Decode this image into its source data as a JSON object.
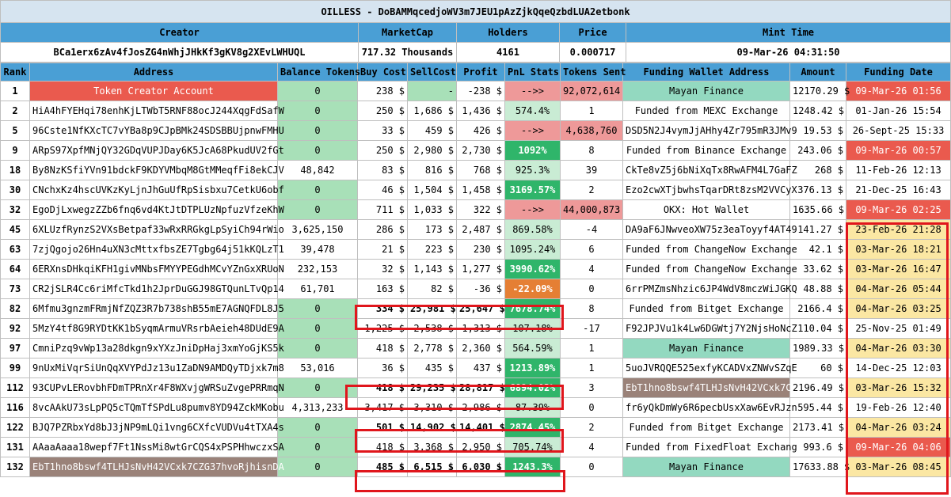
{
  "token_title": "OILLESS - DoBAMMqcedjoWV3m7JEU1pAzZjkQqeQzbdLUA2etbonk",
  "summary_headers": {
    "creator": "Creator",
    "marketcap": "MarketCap",
    "holders": "Holders",
    "price": "Price",
    "mint_time": "Mint Time"
  },
  "summary_values": {
    "creator": "BCa1erx6zAv4fJosZG4nWhjJHkKf3gKV8g2XEvLWHUQL",
    "marketcap": "717.32 Thousands",
    "holders": "4161",
    "price": "0.000717",
    "mint_time": "09-Mar-26 04:31:50"
  },
  "columns": [
    "Rank",
    "Address",
    "Balance Tokens",
    "Buy Cost",
    "SellCost",
    "Profit",
    "PnL Stats",
    "Tokens Sent",
    "Funding Wallet Address",
    "Amount",
    "Funding Date"
  ],
  "rows": [
    {
      "rank": "1",
      "address": "Token Creator Account",
      "balance": "0",
      "buy": "238 $",
      "sell": "-",
      "profit": "-238 $",
      "pnl": "-->>",
      "sent": "92,072,614",
      "funding": "Mayan Finance",
      "amount": "12170.29 $",
      "date": "09-Mar-26 01:56"
    },
    {
      "rank": "2",
      "address": "HiA4hFYEHqi78enhKjLTWbT5RNF88ocJ244XqgFdSafW",
      "balance": "0",
      "buy": "250 $",
      "sell": "1,686 $",
      "profit": "1,436 $",
      "pnl": "574.4%",
      "sent": "1",
      "funding": "Funded from MEXC Exchange",
      "amount": "1248.42 $",
      "date": "01-Jan-26 15:54"
    },
    {
      "rank": "5",
      "address": "96Cste1NfKXcTC7vYBa8p9CJpBMk24SDSBBUjpnwFMHU",
      "balance": "0",
      "buy": "33 $",
      "sell": "459 $",
      "profit": "426 $",
      "pnl": "-->>",
      "sent": "4,638,760",
      "funding": "DSD5N2J4vymJjAHhy4Zr795mR3JMv9",
      "amount": "19.53 $",
      "date": "26-Sept-25 15:33"
    },
    {
      "rank": "9",
      "address": "ARpS97XpfMNjQY32GDqVUPJDay6K5JcA68PkudUV2fGt",
      "balance": "0",
      "buy": "250 $",
      "sell": "2,980 $",
      "profit": "2,730 $",
      "pnl": "1092%",
      "sent": "8",
      "funding": "Funded from Binance Exchange",
      "amount": "243.06 $",
      "date": "09-Mar-26 00:57"
    },
    {
      "rank": "18",
      "address": "By8NzKSfiYVn91bdckF9KDYVMbqM8GtMMeqfFi8ekCJV",
      "balance": "48,842",
      "buy": "83 $",
      "sell": "816 $",
      "profit": "768 $",
      "pnl": "925.3%",
      "sent": "39",
      "funding": "CkTe8vZ5j6bNiXqTx8RwAFM4L7GaFZ",
      "amount": "268 $",
      "date": "11-Feb-26 12:13"
    },
    {
      "rank": "30",
      "address": "CNchxKz4hscUVKzKyLjnJhGuUfRpSisbxu7CetkU6obf",
      "balance": "0",
      "buy": "46 $",
      "sell": "1,504 $",
      "profit": "1,458 $",
      "pnl": "3169.57%",
      "sent": "2",
      "funding": "Ezo2cwXTjbwhsTqarDRt8zsM2VVCyX",
      "amount": "376.13 $",
      "date": "21-Dec-25 16:43"
    },
    {
      "rank": "32",
      "address": "EgoDjLxwegzZZb6fnq6vd4KtJtDTPLUzNpfuzVfzeKhW",
      "balance": "0",
      "buy": "711 $",
      "sell": "1,033 $",
      "profit": "322 $",
      "pnl": "-->>",
      "sent": "44,000,873",
      "funding": "OKX: Hot Wallet",
      "amount": "1635.66 $",
      "date": "09-Mar-26 02:25"
    },
    {
      "rank": "45",
      "address": "6XLUzfRynzS2VXsBetpaf33wRxRRGkgLpSyiCh94rWio",
      "balance": "3,625,150",
      "buy": "286 $",
      "sell": "173 $",
      "profit": "2,487 $",
      "pnl": "869.58%",
      "sent": "-4",
      "funding": "DA9aF6JNwveoXW75z3eaToyyf4AT49",
      "amount": "141.27 $",
      "date": "23-Feb-26 21:28"
    },
    {
      "rank": "63",
      "address": "7zjQgojo26Hn4uXN3cMttxfbsZE7Tgbg64j51kKQLzT1",
      "balance": "39,478",
      "buy": "21 $",
      "sell": "223 $",
      "profit": "230 $",
      "pnl": "1095.24%",
      "sent": "6",
      "funding": "Funded from ChangeNow Exchange",
      "amount": "42.1 $",
      "date": "03-Mar-26 18:21"
    },
    {
      "rank": "64",
      "address": "6ERXnsDHkqiKFH1givMNbsFMYYPEGdhMCvYZnGxXRUoN",
      "balance": "232,153",
      "buy": "32 $",
      "sell": "1,143 $",
      "profit": "1,277 $",
      "pnl": "3990.62%",
      "sent": "4",
      "funding": "Funded from ChangeNow Exchange",
      "amount": "33.62 $",
      "date": "03-Mar-26 16:47"
    },
    {
      "rank": "73",
      "address": "CR2jSLR4Cc6riMfcTkd1h2JprDuGGJ98GTQunLTvQp14",
      "balance": "61,701",
      "buy": "163 $",
      "sell": "82 $",
      "profit": "-36 $",
      "pnl": "-22.09%",
      "sent": "0",
      "funding": "6rrPMZmsNhzic6JP4WdV8mczWiJGKQ",
      "amount": "48.88 $",
      "date": "04-Mar-26 05:44"
    },
    {
      "rank": "82",
      "address": "6Mfmu3gnzmFRmjNfZQZ3R7b738shB55mE7AGNQFDL8J5",
      "balance": "0",
      "buy": "334 $",
      "sell": "25,981 $",
      "profit": "25,647 $",
      "pnl": "7678.74%",
      "sent": "8",
      "funding": "Funded from Bitget Exchange",
      "amount": "2166.4 $",
      "date": "04-Mar-26 03:25"
    },
    {
      "rank": "92",
      "address": "5MzY4tf8G9RYDtKK1bSyqmArmuVRsrbAeieh48DUdE9A",
      "balance": "0",
      "buy": "1,225 $",
      "sell": "2,538 $",
      "profit": "1,313 $",
      "pnl": "107.18%",
      "sent": "-17",
      "funding": "F92JPJVu1k4Lw6DGWtj7Y2NjsHoNcZ",
      "amount": "110.04 $",
      "date": "25-Nov-25 01:49"
    },
    {
      "rank": "97",
      "address": "CmniPzq9vWp13a28dkgn9xYXzJniDpHaj3xmYoGjKS5k",
      "balance": "0",
      "buy": "418 $",
      "sell": "2,778 $",
      "profit": "2,360 $",
      "pnl": "564.59%",
      "sent": "1",
      "funding": "Mayan Finance",
      "amount": "1989.33 $",
      "date": "04-Mar-26 03:30"
    },
    {
      "rank": "99",
      "address": "9nUxMiVqrSiUnQqXVYPdJz13u1ZaDN9AMDQyTDjxk7m8",
      "balance": "53,016",
      "buy": "36 $",
      "sell": "435 $",
      "profit": "437 $",
      "pnl": "1213.89%",
      "sent": "1",
      "funding": "5uoJVRQQE525exfyKCADVxZNWvSZqE",
      "amount": "60 $",
      "date": "14-Dec-25 12:03"
    },
    {
      "rank": "112",
      "address": "93CUPvLERovbhFDmTPRnXr4F8WXvjgWRSuZvgePRRmqN",
      "balance": "0",
      "buy": "418 $",
      "sell": "29,235 $",
      "profit": "28,817 $",
      "pnl": "6894.02%",
      "sent": "3",
      "funding": "EbT1hno8bswf4TLHJsNvH42VCxk7CZ",
      "amount": "2196.49 $",
      "date": "03-Mar-26 15:32"
    },
    {
      "rank": "116",
      "address": "8vcAAkU73sLpPQ5cTQmTfSPdLu8pumv8YD94ZckMKobu",
      "balance": "4,313,233",
      "buy": "3,417 $",
      "sell": "3,310 $",
      "profit": "2,986 $",
      "pnl": "87.39%",
      "sent": "0",
      "funding": "fr6yQkDmWy6R6pecbUsxXaw6EvRJzn",
      "amount": "595.44 $",
      "date": "19-Feb-26 12:40"
    },
    {
      "rank": "122",
      "address": "BJQ7PZRbxYd8bJ3jNP9mLQi1vng6CXfcVUDVu4tTXA4s",
      "balance": "0",
      "buy": "501 $",
      "sell": "14,902 $",
      "profit": "14,401 $",
      "pnl": "2874.45%",
      "sent": "2",
      "funding": "Funded from Bitget Exchange",
      "amount": "2173.41 $",
      "date": "04-Mar-26 03:24"
    },
    {
      "rank": "131",
      "address": "AAaaAaaa18wepf7Ft1NssMi8wtGrCQS4xPSPHhwczxSA",
      "balance": "0",
      "buy": "418 $",
      "sell": "3,368 $",
      "profit": "2,950 $",
      "pnl": "705.74%",
      "sent": "4",
      "funding": "Funded from FixedFloat Exchang",
      "amount": "993.6 $",
      "date": "09-Mar-26 04:06"
    },
    {
      "rank": "132",
      "address": "EbT1hno8bswf4TLHJsNvH42VCxk7CZG37hvoRjhisnDA",
      "balance": "0",
      "buy": "485 $",
      "sell": "6,515 $",
      "profit": "6,030 $",
      "pnl": "1243.3%",
      "sent": "0",
      "funding": "Mayan Finance",
      "amount": "17633.88 $",
      "date": "03-Mar-26 08:45"
    }
  ],
  "colors": {
    "header_blue": "#4a9fd5",
    "title_bg": "#d6e4f0",
    "balance_green": "#a8e0b8",
    "pnl_light_green": "#c9ecd4",
    "pnl_dark_green": "#2fb56a",
    "pnl_pink": "#ee9999",
    "pnl_orange": "#e57f34",
    "creator_red": "#ea5a4e",
    "funding_mint": "#93d9c0",
    "funding_brown": "#9a8279",
    "date_yellow": "#fbe7a3",
    "highlight_red": "#e0161c"
  }
}
